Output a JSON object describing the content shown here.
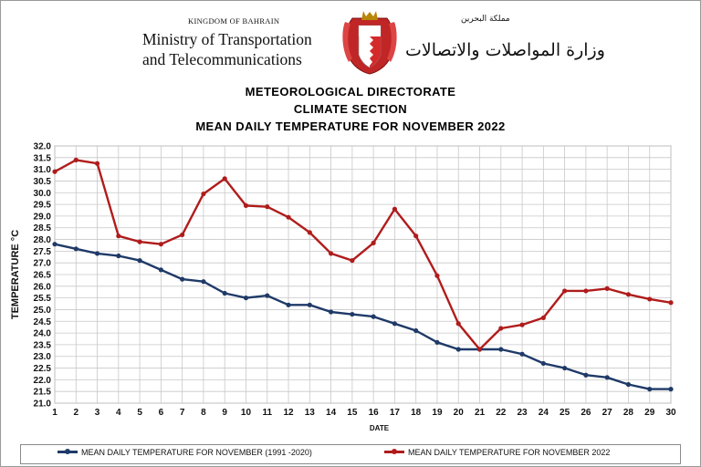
{
  "header": {
    "kingdom": "KINGDOM OF BAHRAIN",
    "ministry_line1": "Ministry of Transportation",
    "ministry_line2": "and Telecommunications",
    "arabic_kingdom": "مملكة البحرين",
    "arabic_ministry": "وزارة المواصلات والاتصالات"
  },
  "colors": {
    "series_historic": "#1f3a68",
    "series_2022": "#b01c1c",
    "emblem_red": "#d42a2a"
  },
  "chart_data": {
    "type": "line",
    "title": "MEAN DAILY TEMPERATURE  FOR NOVEMBER  2022",
    "title_lines": [
      "METEOROLOGICAL  DIRECTORATE",
      "CLIMATE SECTION",
      "MEAN DAILY TEMPERATURE  FOR NOVEMBER  2022"
    ],
    "xlabel": "DATE",
    "ylabel": "TEMPERATURE °C",
    "ylim": [
      21.0,
      32.0
    ],
    "ystep": 0.5,
    "grid": true,
    "legend_position": "bottom",
    "x": [
      1,
      2,
      3,
      4,
      5,
      6,
      7,
      8,
      9,
      10,
      11,
      12,
      13,
      14,
      15,
      16,
      17,
      18,
      19,
      20,
      21,
      22,
      23,
      24,
      25,
      26,
      27,
      28,
      29,
      30
    ],
    "series": [
      {
        "name": "MEAN DAILY TEMPERATURE FOR NOVEMBER (1991 -2020)",
        "values": [
          27.8,
          27.6,
          27.4,
          27.3,
          27.1,
          26.7,
          26.3,
          26.2,
          25.7,
          25.5,
          25.6,
          25.2,
          25.2,
          24.9,
          24.8,
          24.7,
          24.4,
          24.1,
          23.6,
          23.3,
          23.3,
          23.3,
          23.1,
          22.7,
          22.5,
          22.2,
          22.1,
          21.8,
          21.6,
          21.6
        ]
      },
      {
        "name": "MEAN DAILY TEMPERATURE FOR NOVEMBER 2022",
        "values": [
          30.9,
          31.4,
          31.25,
          28.15,
          27.9,
          27.8,
          28.2,
          29.95,
          30.6,
          29.45,
          29.4,
          28.95,
          28.3,
          27.4,
          27.1,
          27.85,
          29.3,
          28.15,
          26.45,
          24.4,
          23.3,
          24.2,
          24.35,
          24.65,
          25.8,
          25.8,
          25.9,
          25.65,
          25.45,
          25.3
        ]
      }
    ]
  }
}
